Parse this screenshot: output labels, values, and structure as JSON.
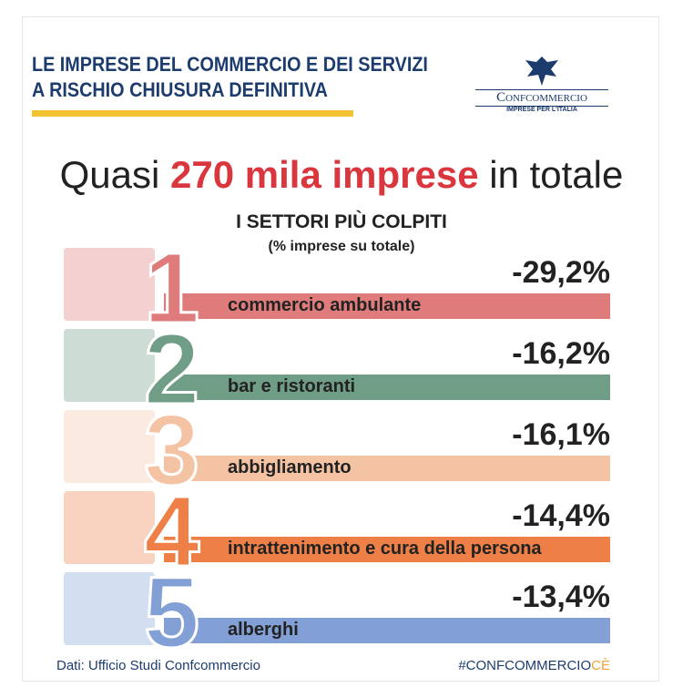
{
  "header": {
    "title_line1": "LE IMPRESE DEL COMMERCIO E DEI SERVIZI",
    "title_line2": "A RISCHIO CHIUSURA DEFINITIVA",
    "logo_name": "Confcommercio",
    "logo_tagline": "IMPRESE PER L'ITALIA"
  },
  "headline": {
    "before": "Quasi",
    "highlight": "270 mila imprese",
    "after": "in totale"
  },
  "subtitle": "I SETTORI PIÙ COLPITI",
  "note": "(% imprese su totale)",
  "items": [
    {
      "rank": "1",
      "label": "commercio ambulante",
      "value": "-29,2%",
      "color": "#e07b7b"
    },
    {
      "rank": "2",
      "label": "bar e ristoranti",
      "value": "-16,2%",
      "color": "#6f9d86"
    },
    {
      "rank": "3",
      "label": "abbigliamento",
      "value": "-16,1%",
      "color": "#f4c3a3"
    },
    {
      "rank": "4",
      "label": "intrattenimento e cura della persona",
      "value": "-14,4%",
      "color": "#ee8047"
    },
    {
      "rank": "5",
      "label": "alberghi",
      "value": "-13,4%",
      "color": "#82a0d6"
    }
  ],
  "footer": {
    "source": "Dati: Ufficio Studi Confcommercio",
    "hashtag": "#CONFCOMMERCIO",
    "hashtag_suffix": "CÈ"
  }
}
